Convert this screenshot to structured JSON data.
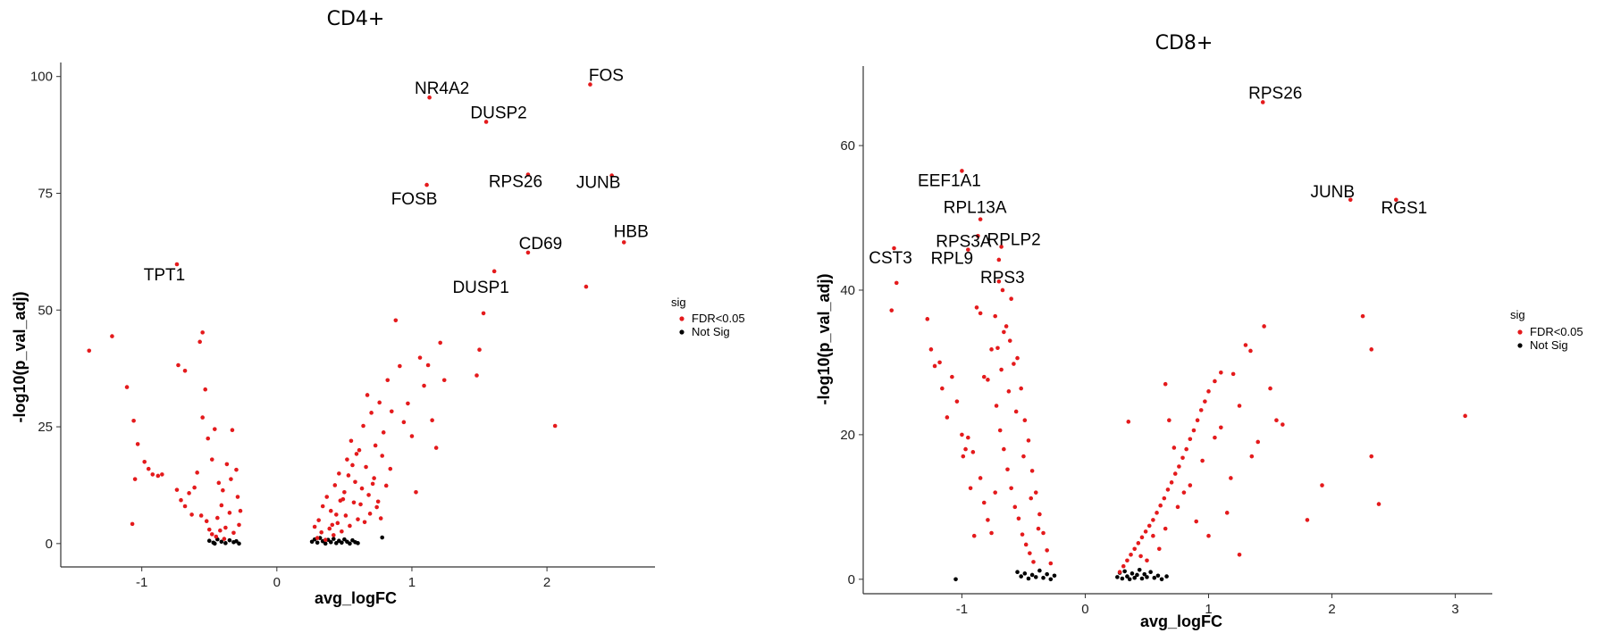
{
  "chart_data": [
    {
      "type": "scatter",
      "title": "CD4+",
      "xlabel": "avg_logFC",
      "ylabel": "-log10(p_val_adj)",
      "xlim": [
        -1.6,
        2.8
      ],
      "ylim": [
        -5,
        103
      ],
      "xticks": [
        -1,
        0,
        1,
        2
      ],
      "yticks": [
        0,
        25,
        50,
        75,
        100
      ],
      "grid": false,
      "legend": {
        "title": "sig",
        "position": "right",
        "entries": [
          {
            "label": "FDR<0.05",
            "color": "#e41a1c"
          },
          {
            "label": "Not Sig",
            "color": "#000000"
          }
        ]
      },
      "labeled_genes": [
        {
          "gene": "NR4A2",
          "x": 1.13,
          "y": 95.5
        },
        {
          "gene": "FOS",
          "x": 2.32,
          "y": 98.3
        },
        {
          "gene": "DUSP2",
          "x": 1.55,
          "y": 90.3
        },
        {
          "gene": "FOSB",
          "x": 1.11,
          "y": 76.8
        },
        {
          "gene": "RPS26",
          "x": 1.86,
          "y": 79.0
        },
        {
          "gene": "JUNB",
          "x": 2.48,
          "y": 78.8
        },
        {
          "gene": "HBB",
          "x": 2.57,
          "y": 64.5
        },
        {
          "gene": "CD69",
          "x": 1.86,
          "y": 62.3
        },
        {
          "gene": "DUSP1",
          "x": 1.61,
          "y": 58.3
        },
        {
          "gene": "TPT1",
          "x": -0.74,
          "y": 59.8
        }
      ],
      "sig_points": [
        [
          -1.39,
          41.3
        ],
        [
          -1.22,
          44.4
        ],
        [
          -1.11,
          33.5
        ],
        [
          -1.06,
          26.3
        ],
        [
          -1.03,
          21.3
        ],
        [
          -1.05,
          13.8
        ],
        [
          -1.07,
          4.2
        ],
        [
          -0.98,
          17.5
        ],
        [
          -0.95,
          16.0
        ],
        [
          -0.92,
          14.8
        ],
        [
          -0.88,
          14.5
        ],
        [
          -0.85,
          14.8
        ],
        [
          -0.73,
          38.2
        ],
        [
          -0.68,
          37.0
        ],
        [
          -0.74,
          11.5
        ],
        [
          -0.71,
          9.3
        ],
        [
          -0.68,
          8.0
        ],
        [
          -0.65,
          10.8
        ],
        [
          -0.63,
          6.2
        ],
        [
          -0.55,
          45.2
        ],
        [
          -0.57,
          43.2
        ],
        [
          -0.53,
          33.0
        ],
        [
          -0.55,
          27.0
        ],
        [
          -0.51,
          22.5
        ],
        [
          -0.48,
          18.0
        ],
        [
          -0.46,
          24.5
        ],
        [
          -0.43,
          13.0
        ],
        [
          -0.4,
          11.4
        ],
        [
          -0.37,
          17.0
        ],
        [
          -0.34,
          13.8
        ],
        [
          -0.33,
          24.3
        ],
        [
          -0.3,
          15.8
        ],
        [
          -0.28,
          4.0
        ],
        [
          -0.56,
          6.0
        ],
        [
          -0.52,
          4.8
        ],
        [
          -0.5,
          3.0
        ],
        [
          -0.48,
          2.0
        ],
        [
          -0.44,
          5.5
        ],
        [
          -0.41,
          8.2
        ],
        [
          -0.38,
          3.4
        ],
        [
          -0.35,
          6.6
        ],
        [
          -0.32,
          2.3
        ],
        [
          -0.29,
          10.0
        ],
        [
          -0.27,
          7.0
        ],
        [
          -0.59,
          15.2
        ],
        [
          -0.61,
          12.0
        ],
        [
          -0.45,
          1.5
        ],
        [
          -0.42,
          2.8
        ],
        [
          -0.39,
          1.0
        ],
        [
          0.28,
          3.6
        ],
        [
          0.31,
          5.0
        ],
        [
          0.34,
          8.0
        ],
        [
          0.37,
          10.0
        ],
        [
          0.4,
          7.0
        ],
        [
          0.43,
          12.5
        ],
        [
          0.46,
          15.0
        ],
        [
          0.49,
          9.5
        ],
        [
          0.52,
          18.0
        ],
        [
          0.55,
          22.0
        ],
        [
          0.58,
          13.2
        ],
        [
          0.61,
          20.0
        ],
        [
          0.64,
          25.2
        ],
        [
          0.67,
          31.8
        ],
        [
          0.7,
          28.0
        ],
        [
          0.73,
          21.0
        ],
        [
          0.76,
          30.2
        ],
        [
          0.79,
          23.8
        ],
        [
          0.82,
          35.0
        ],
        [
          0.85,
          28.3
        ],
        [
          0.88,
          47.8
        ],
        [
          0.91,
          38.0
        ],
        [
          0.94,
          26.0
        ],
        [
          0.97,
          30.0
        ],
        [
          1.0,
          23.0
        ],
        [
          1.03,
          11.0
        ],
        [
          1.06,
          39.8
        ],
        [
          1.09,
          33.8
        ],
        [
          1.12,
          38.2
        ],
        [
          1.15,
          26.4
        ],
        [
          1.18,
          20.5
        ],
        [
          1.21,
          43.0
        ],
        [
          1.24,
          35.0
        ],
        [
          1.48,
          36.0
        ],
        [
          1.5,
          41.5
        ],
        [
          1.53,
          49.3
        ],
        [
          2.06,
          25.2
        ],
        [
          2.29,
          55.0
        ],
        [
          0.3,
          1.2
        ],
        [
          0.33,
          2.4
        ],
        [
          0.36,
          0.8
        ],
        [
          0.39,
          3.2
        ],
        [
          0.42,
          1.8
        ],
        [
          0.45,
          4.4
        ],
        [
          0.48,
          2.6
        ],
        [
          0.51,
          6.0
        ],
        [
          0.54,
          3.8
        ],
        [
          0.57,
          8.8
        ],
        [
          0.6,
          5.2
        ],
        [
          0.63,
          11.8
        ],
        [
          0.66,
          16.4
        ],
        [
          0.69,
          6.4
        ],
        [
          0.72,
          14.0
        ],
        [
          0.75,
          9.0
        ],
        [
          0.78,
          18.8
        ],
        [
          0.81,
          12.4
        ],
        [
          0.84,
          16.0
        ],
        [
          0.5,
          11.0
        ],
        [
          0.53,
          14.6
        ],
        [
          0.56,
          16.8
        ],
        [
          0.59,
          19.2
        ],
        [
          0.62,
          8.4
        ],
        [
          0.65,
          4.6
        ],
        [
          0.68,
          10.4
        ],
        [
          0.71,
          12.8
        ],
        [
          0.74,
          7.8
        ],
        [
          0.77,
          5.4
        ],
        [
          0.44,
          6.2
        ],
        [
          0.47,
          9.2
        ],
        [
          0.41,
          4.0
        ]
      ],
      "ns_points": [
        [
          -0.5,
          0.6
        ],
        [
          -0.47,
          0.2
        ],
        [
          -0.44,
          0.9
        ],
        [
          -0.41,
          0.4
        ],
        [
          -0.38,
          0.1
        ],
        [
          -0.35,
          0.7
        ],
        [
          -0.32,
          0.3
        ],
        [
          -0.3,
          0.5
        ],
        [
          -0.28,
          0.0
        ],
        [
          -0.46,
          0.0
        ],
        [
          0.26,
          0.4
        ],
        [
          0.28,
          0.9
        ],
        [
          0.3,
          0.2
        ],
        [
          0.32,
          1.2
        ],
        [
          0.34,
          0.5
        ],
        [
          0.36,
          0.0
        ],
        [
          0.38,
          0.8
        ],
        [
          0.4,
          0.3
        ],
        [
          0.42,
          1.0
        ],
        [
          0.44,
          0.1
        ],
        [
          0.46,
          0.6
        ],
        [
          0.48,
          0.2
        ],
        [
          0.5,
          0.9
        ],
        [
          0.52,
          0.4
        ],
        [
          0.54,
          0.0
        ],
        [
          0.56,
          0.7
        ],
        [
          0.58,
          0.3
        ],
        [
          0.6,
          0.1
        ],
        [
          0.78,
          1.3
        ]
      ]
    },
    {
      "type": "scatter",
      "title": "CD8+",
      "xlabel": "avg_logFC",
      "ylabel": "-log10(p_val_adj)",
      "xlim": [
        -1.8,
        3.3
      ],
      "ylim": [
        -2,
        71
      ],
      "xticks": [
        -1,
        0,
        1,
        2,
        3
      ],
      "yticks": [
        0,
        20,
        40,
        60
      ],
      "grid": false,
      "legend": {
        "title": "sig",
        "position": "right",
        "entries": [
          {
            "label": "FDR<0.05",
            "color": "#e41a1c"
          },
          {
            "label": "Not Sig",
            "color": "#000000"
          }
        ]
      },
      "labeled_genes": [
        {
          "gene": "RPS26",
          "x": 1.44,
          "y": 66.0
        },
        {
          "gene": "EEF1A1",
          "x": -1.0,
          "y": 56.5
        },
        {
          "gene": "JUNB",
          "x": 2.15,
          "y": 52.5
        },
        {
          "gene": "RGS1",
          "x": 2.52,
          "y": 52.5
        },
        {
          "gene": "RPL13A",
          "x": -0.85,
          "y": 49.8
        },
        {
          "gene": "RPS3A",
          "x": -0.87,
          "y": 47.5
        },
        {
          "gene": "RPL9",
          "x": -0.95,
          "y": 45.6
        },
        {
          "gene": "RPLP2",
          "x": -0.68,
          "y": 46.0
        },
        {
          "gene": "CST3",
          "x": -1.55,
          "y": 45.8
        },
        {
          "gene": "RPS3",
          "x": -0.7,
          "y": 44.2
        }
      ],
      "sig_points": [
        [
          -1.57,
          37.2
        ],
        [
          -1.53,
          41.0
        ],
        [
          -1.28,
          36.0
        ],
        [
          -1.25,
          31.8
        ],
        [
          -1.22,
          29.5
        ],
        [
          -1.18,
          30.0
        ],
        [
          -1.16,
          26.4
        ],
        [
          -1.12,
          22.4
        ],
        [
          -1.08,
          28.0
        ],
        [
          -1.04,
          24.6
        ],
        [
          -1.0,
          20.0
        ],
        [
          -0.97,
          18.0
        ],
        [
          -0.99,
          17.0
        ],
        [
          -0.95,
          19.6
        ],
        [
          -0.91,
          17.6
        ],
        [
          -0.88,
          37.6
        ],
        [
          -0.85,
          36.8
        ],
        [
          -0.82,
          28.0
        ],
        [
          -0.79,
          27.6
        ],
        [
          -0.76,
          31.8
        ],
        [
          -0.73,
          36.4
        ],
        [
          -0.7,
          41.2
        ],
        [
          -0.67,
          40.0
        ],
        [
          -0.64,
          35.0
        ],
        [
          -0.61,
          33.0
        ],
        [
          -0.58,
          29.8
        ],
        [
          -0.55,
          30.6
        ],
        [
          -0.52,
          26.4
        ],
        [
          -0.49,
          22.0
        ],
        [
          -0.46,
          19.2
        ],
        [
          -0.43,
          15.0
        ],
        [
          -0.4,
          12.0
        ],
        [
          -0.37,
          9.0
        ],
        [
          -0.34,
          6.4
        ],
        [
          -0.31,
          4.0
        ],
        [
          -0.28,
          2.2
        ],
        [
          -0.72,
          24.0
        ],
        [
          -0.69,
          20.6
        ],
        [
          -0.66,
          18.0
        ],
        [
          -0.63,
          15.2
        ],
        [
          -0.6,
          12.6
        ],
        [
          -0.57,
          10.0
        ],
        [
          -0.54,
          8.4
        ],
        [
          -0.51,
          6.2
        ],
        [
          -0.48,
          4.8
        ],
        [
          -0.45,
          3.6
        ],
        [
          -0.42,
          2.4
        ],
        [
          -0.85,
          14.0
        ],
        [
          -0.82,
          10.6
        ],
        [
          -0.79,
          8.2
        ],
        [
          -0.76,
          6.4
        ],
        [
          -0.73,
          12.0
        ],
        [
          -0.93,
          12.6
        ],
        [
          -0.9,
          6.0
        ],
        [
          -0.68,
          29.0
        ],
        [
          -0.62,
          26.0
        ],
        [
          -0.56,
          23.2
        ],
        [
          -0.5,
          17.0
        ],
        [
          -0.44,
          11.2
        ],
        [
          -0.38,
          7.0
        ],
        [
          -0.66,
          34.2
        ],
        [
          -0.6,
          38.8
        ],
        [
          -0.71,
          32.0
        ],
        [
          0.28,
          1.0
        ],
        [
          0.31,
          1.8
        ],
        [
          0.34,
          2.6
        ],
        [
          0.37,
          3.4
        ],
        [
          0.4,
          4.2
        ],
        [
          0.43,
          5.0
        ],
        [
          0.46,
          5.8
        ],
        [
          0.49,
          6.6
        ],
        [
          0.52,
          7.4
        ],
        [
          0.55,
          8.2
        ],
        [
          0.58,
          9.2
        ],
        [
          0.61,
          10.2
        ],
        [
          0.64,
          11.2
        ],
        [
          0.67,
          12.4
        ],
        [
          0.7,
          13.4
        ],
        [
          0.73,
          14.6
        ],
        [
          0.76,
          15.6
        ],
        [
          0.79,
          16.8
        ],
        [
          0.82,
          18.0
        ],
        [
          0.85,
          19.4
        ],
        [
          0.88,
          20.6
        ],
        [
          0.91,
          22.0
        ],
        [
          0.94,
          23.4
        ],
        [
          0.97,
          24.6
        ],
        [
          1.0,
          26.0
        ],
        [
          1.05,
          27.4
        ],
        [
          1.1,
          28.6
        ],
        [
          1.2,
          28.4
        ],
        [
          1.25,
          24.0
        ],
        [
          1.3,
          32.4
        ],
        [
          1.34,
          31.6
        ],
        [
          1.45,
          35.0
        ],
        [
          1.5,
          26.4
        ],
        [
          1.55,
          22.0
        ],
        [
          1.6,
          21.4
        ],
        [
          1.4,
          19.0
        ],
        [
          1.35,
          17.0
        ],
        [
          1.18,
          14.0
        ],
        [
          1.15,
          9.2
        ],
        [
          1.25,
          3.4
        ],
        [
          0.68,
          22.0
        ],
        [
          0.65,
          27.0
        ],
        [
          0.72,
          18.2
        ],
        [
          0.8,
          12.0
        ],
        [
          0.9,
          8.0
        ],
        [
          1.0,
          6.0
        ],
        [
          0.35,
          21.8
        ],
        [
          0.55,
          6.0
        ],
        [
          0.6,
          4.2
        ],
        [
          0.65,
          7.0
        ],
        [
          0.75,
          10.0
        ],
        [
          0.85,
          13.0
        ],
        [
          0.95,
          16.4
        ],
        [
          1.05,
          19.6
        ],
        [
          1.1,
          21.0
        ],
        [
          0.45,
          3.2
        ],
        [
          0.5,
          2.6
        ],
        [
          1.92,
          13.0
        ],
        [
          1.8,
          8.2
        ],
        [
          2.25,
          36.4
        ],
        [
          2.32,
          31.8
        ],
        [
          2.32,
          17.0
        ],
        [
          2.38,
          10.4
        ],
        [
          3.08,
          22.6
        ]
      ],
      "ns_points": [
        [
          -1.05,
          0.0
        ],
        [
          -0.55,
          1.0
        ],
        [
          -0.52,
          0.4
        ],
        [
          -0.49,
          0.8
        ],
        [
          -0.46,
          0.1
        ],
        [
          -0.43,
          0.6
        ],
        [
          -0.4,
          0.3
        ],
        [
          -0.37,
          1.2
        ],
        [
          -0.34,
          0.2
        ],
        [
          -0.31,
          0.7
        ],
        [
          -0.28,
          0.0
        ],
        [
          -0.25,
          0.5
        ],
        [
          0.26,
          0.3
        ],
        [
          0.28,
          0.9
        ],
        [
          0.3,
          0.1
        ],
        [
          0.32,
          1.1
        ],
        [
          0.34,
          0.4
        ],
        [
          0.36,
          0.0
        ],
        [
          0.38,
          0.8
        ],
        [
          0.4,
          0.2
        ],
        [
          0.42,
          0.6
        ],
        [
          0.44,
          1.3
        ],
        [
          0.46,
          0.1
        ],
        [
          0.48,
          0.7
        ],
        [
          0.5,
          0.3
        ],
        [
          0.53,
          1.0
        ],
        [
          0.56,
          0.2
        ],
        [
          0.59,
          0.5
        ],
        [
          0.62,
          0.0
        ],
        [
          0.66,
          0.4
        ]
      ]
    }
  ]
}
